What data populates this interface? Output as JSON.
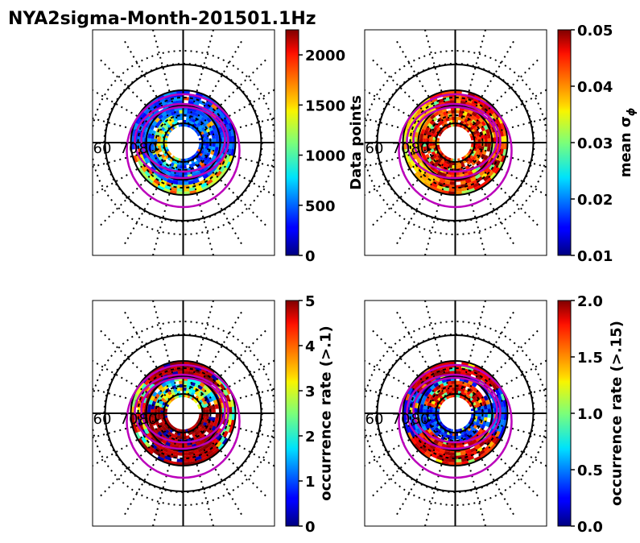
{
  "chart_data": {
    "type": "polar-heatmap",
    "title": "NYA2sigma-Month-201501.1Hz",
    "radial_labels": [
      "60",
      "70",
      "80"
    ],
    "colormap": "jet",
    "panels": [
      {
        "id": "data-points",
        "colorbar_label": "Data points",
        "vmin": 0,
        "vmax": 2250,
        "ticks": [
          "0",
          "500",
          "1000",
          "1500",
          "2000"
        ],
        "tick_values": [
          0,
          500,
          1000,
          1500,
          2000
        ],
        "pattern": "datapoints"
      },
      {
        "id": "mean-sigma-phi",
        "colorbar_label": "mean σ",
        "colorbar_label_sub": "ϕ",
        "vmin": 0.01,
        "vmax": 0.05,
        "ticks": [
          "0.01",
          "0.02",
          "0.03",
          "0.04",
          "0.05"
        ],
        "tick_values": [
          0.01,
          0.02,
          0.03,
          0.04,
          0.05
        ],
        "pattern": "sigma"
      },
      {
        "id": "occurrence-rate-1",
        "colorbar_label": "occurrence rate (>.1)",
        "vmin": 0,
        "vmax": 5,
        "ticks": [
          "0",
          "1",
          "2",
          "3",
          "4",
          "5"
        ],
        "tick_values": [
          0,
          1,
          2,
          3,
          4,
          5
        ],
        "pattern": "occ1"
      },
      {
        "id": "occurrence-rate-15",
        "colorbar_label": "occurrence rate (>.15)",
        "vmin": 0,
        "vmax": 2,
        "ticks": [
          "0.0",
          "0.5",
          "1.0",
          "1.5",
          "2.0"
        ],
        "tick_values": [
          0,
          0.5,
          1,
          1.5,
          2
        ],
        "pattern": "occ15"
      }
    ],
    "colors": {
      "oval_line": "#bb00bb",
      "grid": "#000000"
    }
  }
}
